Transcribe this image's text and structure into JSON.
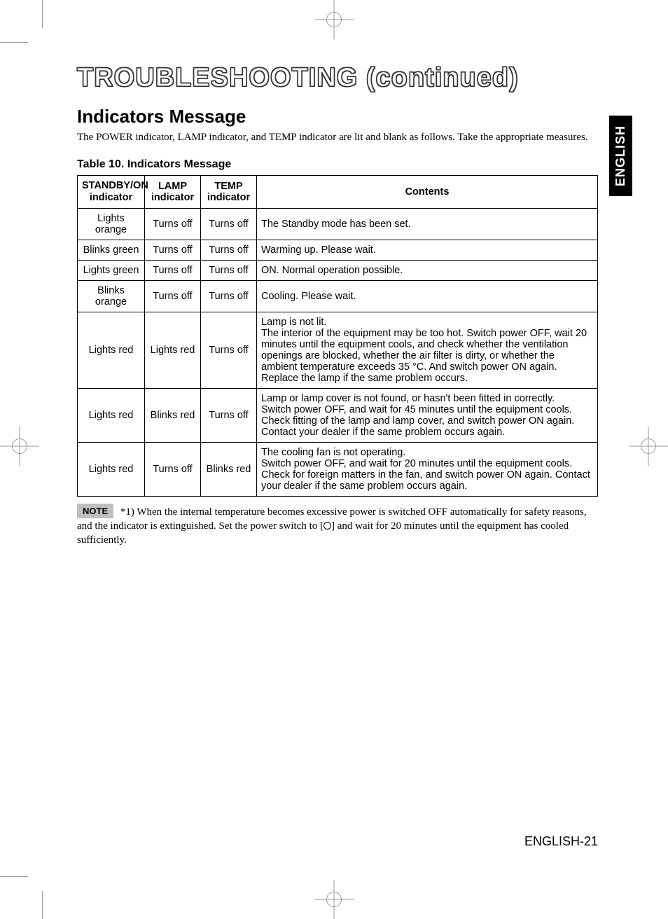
{
  "lang_tab": "ENGLISH",
  "page_title": "TROUBLESHOOTING (continued)",
  "section_title": "Indicators Message",
  "intro": "The POWER indicator, LAMP indicator, and TEMP indicator are lit and blank as follows. Take the appropriate measures.",
  "table_caption": "Table 10. Indicators Message",
  "table": {
    "columns": {
      "standby_line1": "STANDBY/ON",
      "standby_line2": "indicator",
      "lamp_line1": "LAMP",
      "lamp_line2": "indicator",
      "temp_line1": "TEMP",
      "temp_line2": "indicator",
      "contents": "Contents"
    },
    "rows": [
      {
        "standby": "Lights orange",
        "lamp": "Turns off",
        "temp": "Turns off",
        "contents": "The Standby mode has been set."
      },
      {
        "standby": "Blinks green",
        "lamp": "Turns off",
        "temp": "Turns off",
        "contents": "Warming up. Please wait."
      },
      {
        "standby": "Lights green",
        "lamp": "Turns off",
        "temp": "Turns off",
        "contents": "ON. Normal operation possible."
      },
      {
        "standby": "Blinks orange",
        "lamp": "Turns off",
        "temp": "Turns off",
        "contents": "Cooling. Please wait."
      },
      {
        "standby": "Lights red",
        "lamp": "Lights red",
        "temp": "Turns off",
        "contents": "Lamp is not lit.\nThe interior of the equipment may be too hot. Switch power OFF, wait 20 minutes until the equipment cools, and check whether the ventilation openings are blocked, whether the air filter is dirty, or whether the ambient temperature exceeds 35 °C. And switch power ON again. Replace the lamp if the same problem occurs."
      },
      {
        "standby": "Lights red",
        "lamp": "Blinks red",
        "temp": "Turns off",
        "contents": "Lamp or lamp cover is not found, or hasn't been fitted in correctly.\nSwitch power OFF, and wait for 45 minutes until the equipment cools. Check fitting of the lamp and lamp cover, and switch power ON again. Contact your dealer if the same problem occurs again."
      },
      {
        "standby": "Lights red",
        "lamp": "Turns off",
        "temp": "Blinks red",
        "contents": "The cooling fan is not operating.\nSwitch power OFF, and wait for 20 minutes until the equipment cools. Check for foreign matters in the fan, and switch power ON again. Contact your dealer if the same problem occurs again."
      }
    ]
  },
  "note_label": "NOTE",
  "note_text_before": "*1) When the internal temperature becomes excessive power is switched OFF automatically for safety reasons, and the indicator is extinguished. Set the power switch to [",
  "note_text_after": "] and wait for 20 minutes until the equipment has cooled sufficiently.",
  "footer": "ENGLISH-21"
}
